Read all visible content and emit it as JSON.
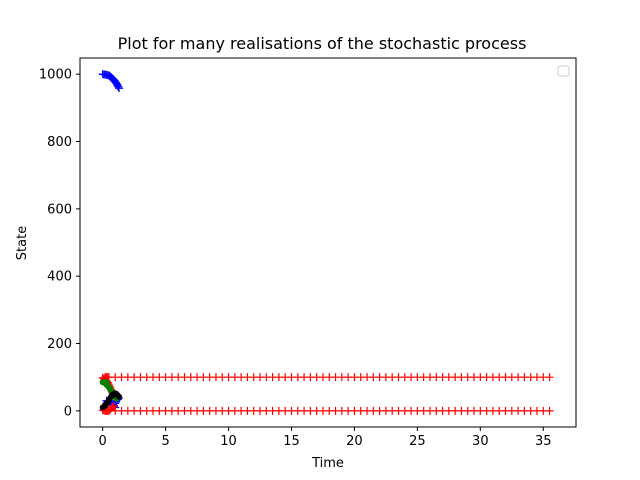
{
  "chart_data": {
    "type": "scatter",
    "title": "Plot for many realisations of the stochastic process",
    "xlabel": "Time",
    "ylabel": "State",
    "xlim": [
      -1.8,
      37.6
    ],
    "ylim": [
      -48,
      1048
    ],
    "xticks": [
      0,
      5,
      10,
      15,
      20,
      25,
      30,
      35
    ],
    "yticks": [
      0,
      200,
      400,
      600,
      800,
      1000
    ],
    "grid": false,
    "legend": "top-right (empty)",
    "series": [
      {
        "color": "#0000ff",
        "marker": "+",
        "points": [
          [
            0.0,
            1000
          ],
          [
            0.1,
            999
          ],
          [
            0.2,
            999
          ],
          [
            0.3,
            998
          ],
          [
            0.4,
            997
          ],
          [
            0.5,
            996
          ],
          [
            0.55,
            994
          ],
          [
            0.6,
            993
          ],
          [
            0.65,
            991
          ],
          [
            0.7,
            990
          ],
          [
            0.75,
            988
          ],
          [
            0.8,
            986
          ],
          [
            0.85,
            984
          ],
          [
            0.9,
            982
          ],
          [
            0.95,
            980
          ],
          [
            1.0,
            977
          ],
          [
            1.05,
            975
          ],
          [
            1.1,
            972
          ],
          [
            1.15,
            969
          ],
          [
            1.2,
            965
          ],
          [
            1.25,
            962
          ],
          [
            1.3,
            958
          ],
          [
            0.3,
            30
          ],
          [
            0.5,
            28
          ],
          [
            0.6,
            24
          ],
          [
            0.7,
            20
          ],
          [
            0.8,
            18
          ],
          [
            0.9,
            16
          ],
          [
            1.0,
            22
          ],
          [
            1.05,
            26
          ],
          [
            1.1,
            30
          ],
          [
            1.2,
            34
          ],
          [
            1.3,
            38
          ],
          [
            0.9,
            12
          ],
          [
            1.0,
            10
          ]
        ]
      },
      {
        "color": "#ff0000",
        "marker": "+",
        "points": [
          [
            0.0,
            98
          ],
          [
            0.1,
            96
          ],
          [
            0.15,
            94
          ],
          [
            0.2,
            92
          ],
          [
            0.25,
            90
          ],
          [
            0.3,
            88
          ],
          [
            0.35,
            86
          ],
          [
            0.4,
            84
          ],
          [
            0.45,
            80
          ],
          [
            0.5,
            76
          ],
          [
            0.55,
            72
          ],
          [
            0.6,
            68
          ],
          [
            0.65,
            64
          ],
          [
            0.7,
            60
          ],
          [
            0.75,
            56
          ],
          [
            0.8,
            52
          ],
          [
            0.85,
            48
          ],
          [
            0.9,
            44
          ],
          [
            0.2,
            100
          ],
          [
            0.3,
            100
          ],
          [
            0.4,
            100
          ],
          [
            0.0,
            2
          ],
          [
            0.1,
            1
          ],
          [
            0.2,
            0
          ],
          [
            0.3,
            0
          ],
          [
            0.4,
            0
          ],
          [
            0.5,
            0
          ],
          [
            0.6,
            4
          ],
          [
            0.7,
            8
          ],
          [
            0.8,
            12
          ],
          [
            0.9,
            14
          ]
        ],
        "flat_lines": [
          {
            "y": 100,
            "x_start": 0.5,
            "x_end": 35.8,
            "step": 0.5
          },
          {
            "y": 0,
            "x_start": 0.5,
            "x_end": 35.8,
            "step": 0.5
          }
        ]
      },
      {
        "color": "#008000",
        "marker": "o",
        "points": [
          [
            0.0,
            85
          ],
          [
            0.1,
            84
          ],
          [
            0.2,
            82
          ],
          [
            0.3,
            78
          ],
          [
            0.4,
            74
          ],
          [
            0.5,
            70
          ],
          [
            0.6,
            64
          ],
          [
            0.7,
            58
          ],
          [
            0.8,
            52
          ],
          [
            0.9,
            46
          ],
          [
            1.0,
            40
          ],
          [
            1.1,
            36
          ],
          [
            0.2,
            86
          ],
          [
            0.3,
            85
          ]
        ]
      },
      {
        "color": "#000000",
        "marker": "o",
        "points": [
          [
            0.0,
            10
          ],
          [
            0.1,
            12
          ],
          [
            0.2,
            16
          ],
          [
            0.3,
            20
          ],
          [
            0.4,
            26
          ],
          [
            0.5,
            32
          ],
          [
            0.6,
            38
          ],
          [
            0.7,
            44
          ],
          [
            0.8,
            48
          ],
          [
            0.9,
            50
          ],
          [
            1.0,
            52
          ],
          [
            1.1,
            50
          ],
          [
            1.2,
            46
          ],
          [
            1.3,
            42
          ],
          [
            0.2,
            18
          ],
          [
            0.3,
            22
          ]
        ]
      }
    ]
  }
}
